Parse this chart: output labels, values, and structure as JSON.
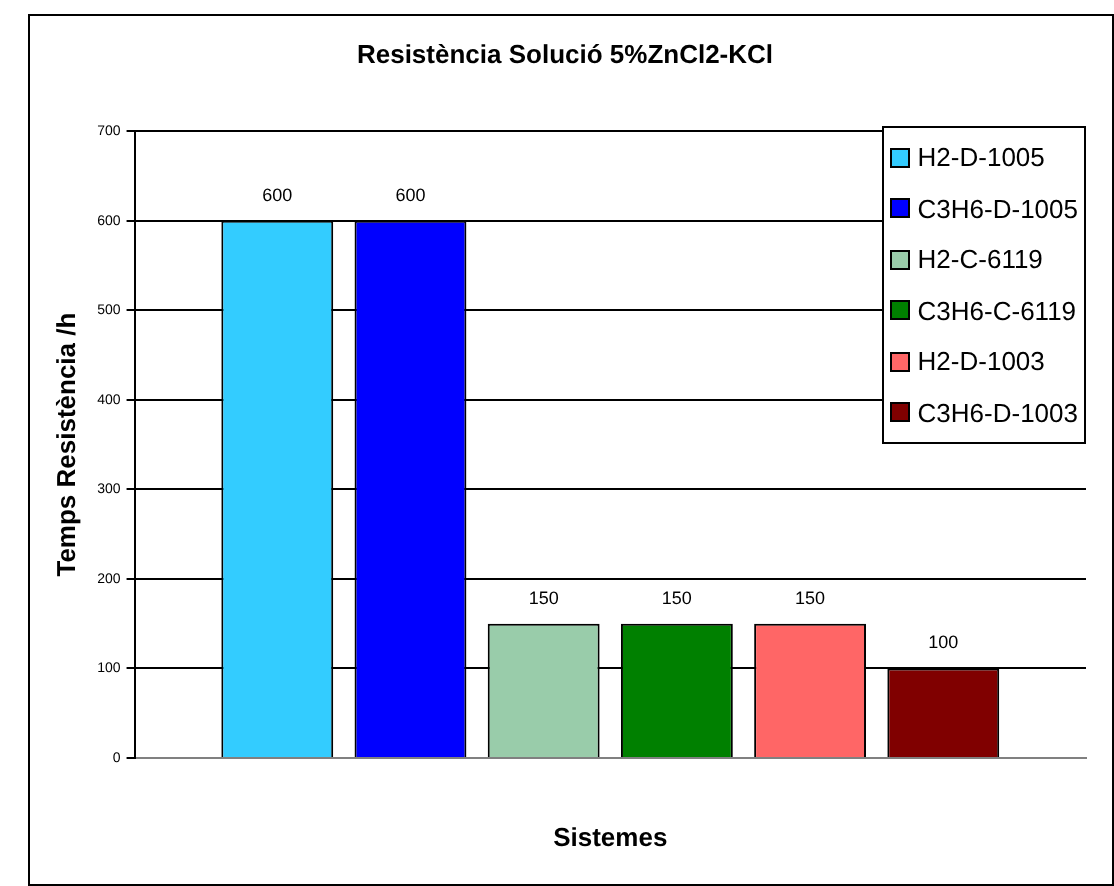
{
  "chart_data": {
    "type": "bar",
    "title": "Resistència Solució 5%ZnCl2-KCl",
    "xlabel": "Sistemes",
    "ylabel": "Temps Resistència /h",
    "categories": [
      null
    ],
    "series": [
      {
        "name": "H2-D-1005",
        "color": "#33ccff",
        "values": [
          600
        ]
      },
      {
        "name": "C3H6-D-1005",
        "color": "#0000ff",
        "values": [
          600
        ]
      },
      {
        "name": "H2-C-6119",
        "color": "#99ccaa",
        "values": [
          150
        ]
      },
      {
        "name": "C3H6-C-6119",
        "color": "#008000",
        "values": [
          150
        ]
      },
      {
        "name": "H2-D-1003",
        "color": "#ff6666",
        "values": [
          150
        ]
      },
      {
        "name": "C3H6-D-1003",
        "color": "#800000",
        "values": [
          100
        ]
      }
    ],
    "ylim": [
      0,
      700
    ],
    "yticks": [
      0,
      100,
      200,
      300,
      400,
      500,
      600,
      700
    ],
    "grid": "y",
    "legend": "top right",
    "data_labels": true
  }
}
